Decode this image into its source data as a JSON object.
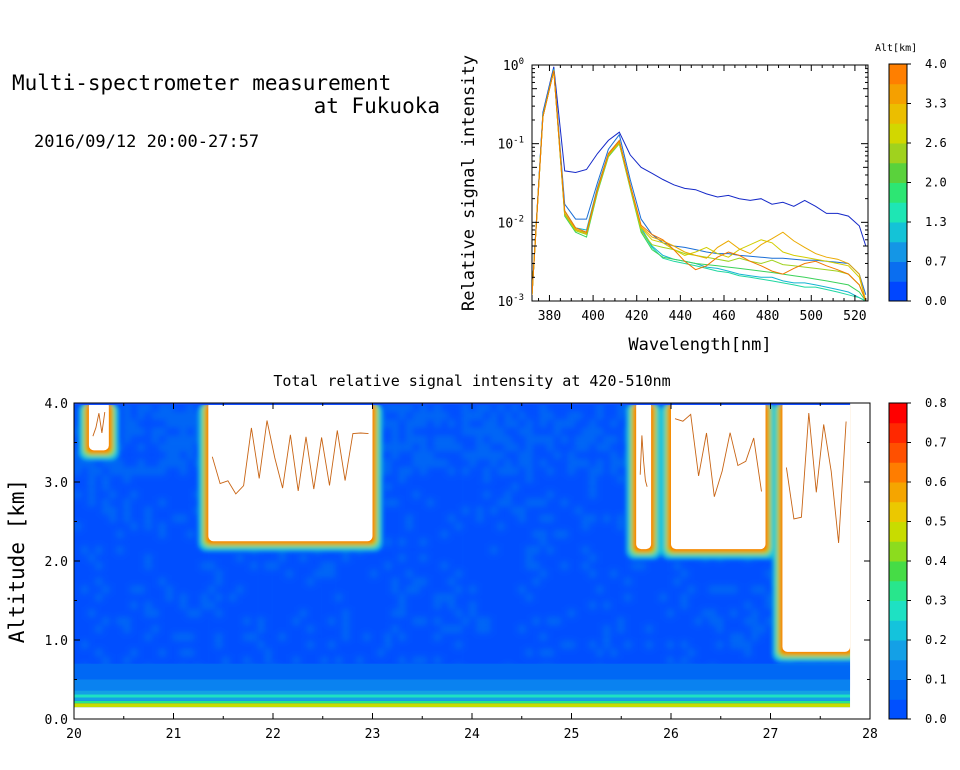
{
  "header": {
    "title_line1": "Multi-spectrometer measurement",
    "title_line2": "at Fukuoka",
    "datetime": "2016/09/12 20:00-27:57"
  },
  "chart_data": [
    {
      "type": "line",
      "title": "",
      "xlabel": "Wavelength[nm]",
      "ylabel": "Relative signal intensity",
      "yscale": "log",
      "xlim": [
        372,
        526
      ],
      "ylim": [
        0.001,
        1
      ],
      "x_ticks": [
        380,
        400,
        420,
        440,
        460,
        480,
        500,
        520
      ],
      "y_ticks": [
        {
          "base": "10",
          "exp": "-3",
          "value": 0.001
        },
        {
          "base": "10",
          "exp": "-2",
          "value": 0.01
        },
        {
          "base": "10",
          "exp": "-1",
          "value": 0.1
        },
        {
          "base": "10",
          "exp": "0",
          "value": 1
        }
      ],
      "colorbar": {
        "label": "Alt[km]",
        "ticks": [
          "0.0",
          "0.7",
          "1.3",
          "2.0",
          "2.6",
          "3.3",
          "4.0"
        ],
        "colors": [
          "#0046ff",
          "#0a6ef0",
          "#1496e6",
          "#14c3d7",
          "#1ee6b4",
          "#2de673",
          "#5ad23c",
          "#a0d21e",
          "#d2d700",
          "#ebbe00",
          "#f5a000",
          "#ff7f00"
        ]
      },
      "x": [
        372,
        377,
        382,
        387,
        392,
        397,
        402,
        407,
        412,
        417,
        422,
        427,
        432,
        437,
        442,
        447,
        452,
        457,
        462,
        467,
        472,
        477,
        482,
        487,
        492,
        497,
        502,
        507,
        512,
        517,
        522,
        525
      ],
      "series": [
        {
          "color": "#1428c8",
          "values": [
            0.0012,
            0.25,
            0.95,
            0.045,
            0.043,
            0.047,
            0.075,
            0.11,
            0.14,
            0.072,
            0.05,
            0.042,
            0.035,
            0.03,
            0.027,
            0.026,
            0.023,
            0.021,
            0.022,
            0.02,
            0.019,
            0.02,
            0.017,
            0.018,
            0.016,
            0.019,
            0.016,
            0.013,
            0.013,
            0.012,
            0.009,
            0.005
          ]
        },
        {
          "color": "#1a6ed6",
          "values": [
            0.0012,
            0.24,
            0.9,
            0.017,
            0.011,
            0.011,
            0.032,
            0.085,
            0.13,
            0.035,
            0.011,
            0.007,
            0.0055,
            0.005,
            0.0048,
            0.0045,
            0.0042,
            0.004,
            0.004,
            0.0038,
            0.0037,
            0.0036,
            0.0035,
            0.0035,
            0.0034,
            0.0033,
            0.0033,
            0.0032,
            0.0031,
            0.003,
            0.0022,
            0.0012
          ]
        },
        {
          "color": "#14b4d2",
          "values": [
            0.0012,
            0.23,
            0.88,
            0.014,
            0.0085,
            0.008,
            0.028,
            0.075,
            0.11,
            0.03,
            0.0085,
            0.005,
            0.0038,
            0.0034,
            0.0032,
            0.003,
            0.0027,
            0.0026,
            0.0024,
            0.0022,
            0.0021,
            0.002,
            0.002,
            0.0018,
            0.0017,
            0.0017,
            0.0016,
            0.0015,
            0.0014,
            0.0013,
            0.0011,
            0.001
          ]
        },
        {
          "color": "#1ed7a0",
          "values": [
            0.0012,
            0.23,
            0.87,
            0.013,
            0.008,
            0.0075,
            0.026,
            0.07,
            0.1,
            0.028,
            0.008,
            0.0048,
            0.0035,
            0.0032,
            0.003,
            0.0028,
            0.0026,
            0.0024,
            0.0023,
            0.0021,
            0.002,
            0.0019,
            0.0018,
            0.0017,
            0.0016,
            0.0015,
            0.0015,
            0.0014,
            0.0013,
            0.0012,
            0.0011,
            0.001
          ]
        },
        {
          "color": "#3cd25a",
          "values": [
            0.0012,
            0.22,
            0.86,
            0.012,
            0.0075,
            0.0065,
            0.024,
            0.068,
            0.1,
            0.027,
            0.0075,
            0.0045,
            0.0036,
            0.0034,
            0.0032,
            0.003,
            0.0029,
            0.0028,
            0.0027,
            0.0026,
            0.0025,
            0.0024,
            0.0023,
            0.0022,
            0.0021,
            0.002,
            0.0019,
            0.0018,
            0.0017,
            0.0016,
            0.0013,
            0.001
          ]
        },
        {
          "color": "#a0d21e",
          "values": [
            0.0012,
            0.22,
            0.85,
            0.0125,
            0.0078,
            0.007,
            0.025,
            0.07,
            0.1,
            0.028,
            0.0078,
            0.0052,
            0.0048,
            0.0045,
            0.004,
            0.0038,
            0.0036,
            0.0034,
            0.0032,
            0.0035,
            0.0032,
            0.003,
            0.0033,
            0.0029,
            0.0028,
            0.0027,
            0.0026,
            0.0025,
            0.0024,
            0.0022,
            0.0016,
            0.001
          ]
        },
        {
          "color": "#d2cd00",
          "values": [
            0.0012,
            0.22,
            0.85,
            0.013,
            0.008,
            0.0072,
            0.026,
            0.072,
            0.105,
            0.029,
            0.0085,
            0.006,
            0.0055,
            0.0045,
            0.0038,
            0.0042,
            0.0048,
            0.004,
            0.0036,
            0.0045,
            0.0052,
            0.006,
            0.0055,
            0.0042,
            0.0038,
            0.0036,
            0.0034,
            0.0032,
            0.003,
            0.0028,
            0.002,
            0.001
          ]
        },
        {
          "color": "#ebaa00",
          "values": [
            0.0012,
            0.22,
            0.85,
            0.013,
            0.0082,
            0.0072,
            0.026,
            0.072,
            0.105,
            0.029,
            0.0088,
            0.0065,
            0.0058,
            0.005,
            0.0042,
            0.0038,
            0.0035,
            0.0048,
            0.0058,
            0.0046,
            0.004,
            0.0052,
            0.0062,
            0.0075,
            0.0058,
            0.0048,
            0.004,
            0.0036,
            0.0034,
            0.003,
            0.0022,
            0.001
          ]
        },
        {
          "color": "#f07800",
          "values": [
            0.0012,
            0.22,
            0.85,
            0.014,
            0.0085,
            0.0075,
            0.027,
            0.075,
            0.11,
            0.03,
            0.0092,
            0.007,
            0.006,
            0.0045,
            0.0032,
            0.0025,
            0.0028,
            0.0036,
            0.0042,
            0.0038,
            0.0032,
            0.0028,
            0.0024,
            0.0022,
            0.0026,
            0.003,
            0.0032,
            0.0028,
            0.0025,
            0.0022,
            0.0016,
            0.001
          ]
        }
      ]
    },
    {
      "type": "heatmap",
      "title": "Total relative signal intensity at 420-510nm",
      "xlabel": "",
      "ylabel": "Altitude [km]",
      "xlim": [
        20,
        28
      ],
      "ylim": [
        0,
        4.0
      ],
      "x_ticks": [
        "20",
        "21",
        "22",
        "23",
        "24",
        "25",
        "26",
        "27",
        "28"
      ],
      "y_ticks": [
        "0.0",
        "1.0",
        "2.0",
        "3.0",
        "4.0"
      ],
      "data_extent_x": [
        20,
        27.8
      ],
      "background_value": 0.03,
      "surface_band": {
        "altitude_low": 0.15,
        "altitude_high": 0.35,
        "peak_value": 0.5
      },
      "saturated_regions": [
        {
          "x": [
            21.35,
            23.0
          ],
          "base_altitude": 2.25,
          "note": "cloud"
        },
        {
          "x": [
            25.65,
            25.8
          ],
          "base_altitude": 2.15,
          "note": "cloud"
        },
        {
          "x": [
            26.0,
            26.95
          ],
          "base_altitude": 2.15,
          "note": "cloud"
        },
        {
          "x": [
            27.12,
            27.8
          ],
          "base_altitude": 0.85,
          "note": "cloud"
        },
        {
          "x": [
            20.15,
            20.35
          ],
          "base_altitude": 3.4,
          "note": "cloud"
        }
      ],
      "colorbar": {
        "ticks": [
          "0.0",
          "0.1",
          "0.2",
          "0.3",
          "0.4",
          "0.5",
          "0.6",
          "0.7",
          "0.8"
        ],
        "colors": [
          "#0050ff",
          "#0068f5",
          "#0a82f0",
          "#14a0e6",
          "#14c3dc",
          "#1ee1c3",
          "#28e68c",
          "#46dc46",
          "#8cdc1e",
          "#c8dc00",
          "#ebc800",
          "#f5a500",
          "#ff7d00",
          "#ff5000",
          "#ff2800",
          "#ff0000"
        ]
      }
    }
  ]
}
